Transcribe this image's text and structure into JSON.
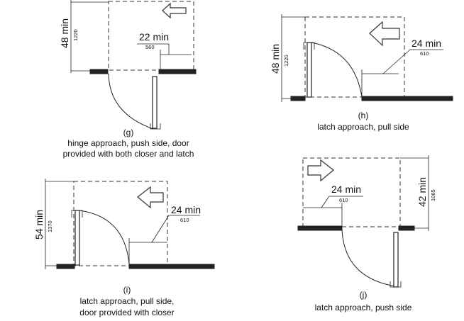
{
  "diagrams": {
    "g": {
      "letter": "(g)",
      "caption_line1": "hinge approach, push side, door",
      "caption_line2": "provided with both closer and latch",
      "vertical_dim": "48 min",
      "vertical_dim_metric": "1220",
      "horizontal_dim": "22 min",
      "horizontal_dim_metric": "560"
    },
    "h": {
      "letter": "(h)",
      "caption_line1": "latch approach, pull side",
      "vertical_dim": "48 min",
      "vertical_dim_metric": "1220",
      "horizontal_dim": "24 min",
      "horizontal_dim_metric": "610"
    },
    "i": {
      "letter": "(i)",
      "caption_line1": "latch approach, pull side,",
      "caption_line2": "door provided with closer",
      "vertical_dim": "54 min",
      "vertical_dim_metric": "1370",
      "horizontal_dim": "24 min",
      "horizontal_dim_metric": "610"
    },
    "j": {
      "letter": "(j)",
      "caption_line1": "latch approach, push side",
      "vertical_dim": "42 min",
      "vertical_dim_metric": "1065",
      "horizontal_dim": "24 min",
      "horizontal_dim_metric": "610"
    }
  }
}
